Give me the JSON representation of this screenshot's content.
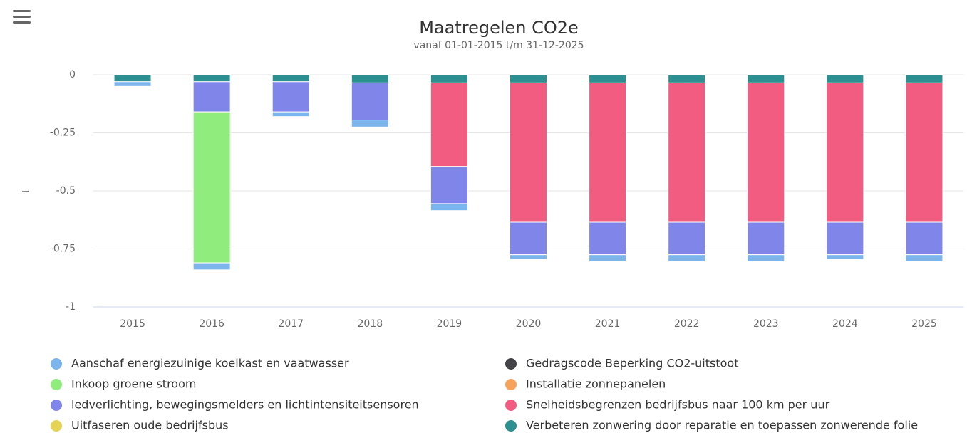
{
  "chart_data": {
    "type": "bar",
    "stacked": true,
    "title": "Maatregelen CO2e",
    "subtitle": "vanaf 01-01-2015 t/m 31-12-2025",
    "y_label": "t",
    "categories": [
      "2015",
      "2016",
      "2017",
      "2018",
      "2019",
      "2020",
      "2021",
      "2022",
      "2023",
      "2024",
      "2025"
    ],
    "ylim": [
      -1,
      0
    ],
    "yticks": [
      0,
      -0.25,
      -0.5,
      -0.75,
      -1
    ],
    "grid": true,
    "series": [
      {
        "name": "Aanschaf energiezuinige koelkast en vaatwasser",
        "color": "#7cb5ec",
        "values": [
          -0.02,
          -0.03,
          -0.02,
          -0.03,
          -0.03,
          -0.02,
          -0.03,
          -0.03,
          -0.03,
          -0.02,
          -0.03
        ]
      },
      {
        "name": "Gedragscode Beperking CO2-uitstoot",
        "color": "#434348",
        "values": [
          null,
          null,
          null,
          null,
          null,
          null,
          null,
          null,
          null,
          null,
          null
        ]
      },
      {
        "name": "Inkoop groene stroom",
        "color": "#90ed7d",
        "values": [
          null,
          -0.65,
          null,
          null,
          null,
          null,
          null,
          null,
          null,
          null,
          null
        ]
      },
      {
        "name": "Installatie zonnepanelen",
        "color": "#f7a35c",
        "values": [
          null,
          null,
          null,
          null,
          null,
          null,
          null,
          null,
          null,
          null,
          null
        ]
      },
      {
        "name": "ledverlichting, bewegingsmelders en lichtintensiteitsensoren",
        "color": "#8085e9",
        "values": [
          null,
          -0.13,
          -0.13,
          -0.16,
          -0.16,
          -0.14,
          -0.14,
          -0.14,
          -0.14,
          -0.14,
          -0.14
        ]
      },
      {
        "name": "Snelheidsbegrenzen bedrijfsbus naar 100 km per uur",
        "color": "#f15c80",
        "values": [
          null,
          null,
          null,
          null,
          -0.36,
          -0.6,
          -0.6,
          -0.6,
          -0.6,
          -0.6,
          -0.6
        ]
      },
      {
        "name": "Uitfaseren oude bedrijfsbus",
        "color": "#e4d354",
        "values": [
          null,
          null,
          null,
          null,
          null,
          null,
          null,
          null,
          null,
          null,
          null
        ]
      },
      {
        "name": "Verbeteren zonwering door reparatie en toepassen zonwerende folie",
        "color": "#2b908f",
        "values": [
          -0.03,
          -0.03,
          -0.03,
          -0.035,
          -0.035,
          -0.035,
          -0.035,
          -0.035,
          -0.035,
          -0.035,
          -0.035
        ]
      }
    ]
  }
}
